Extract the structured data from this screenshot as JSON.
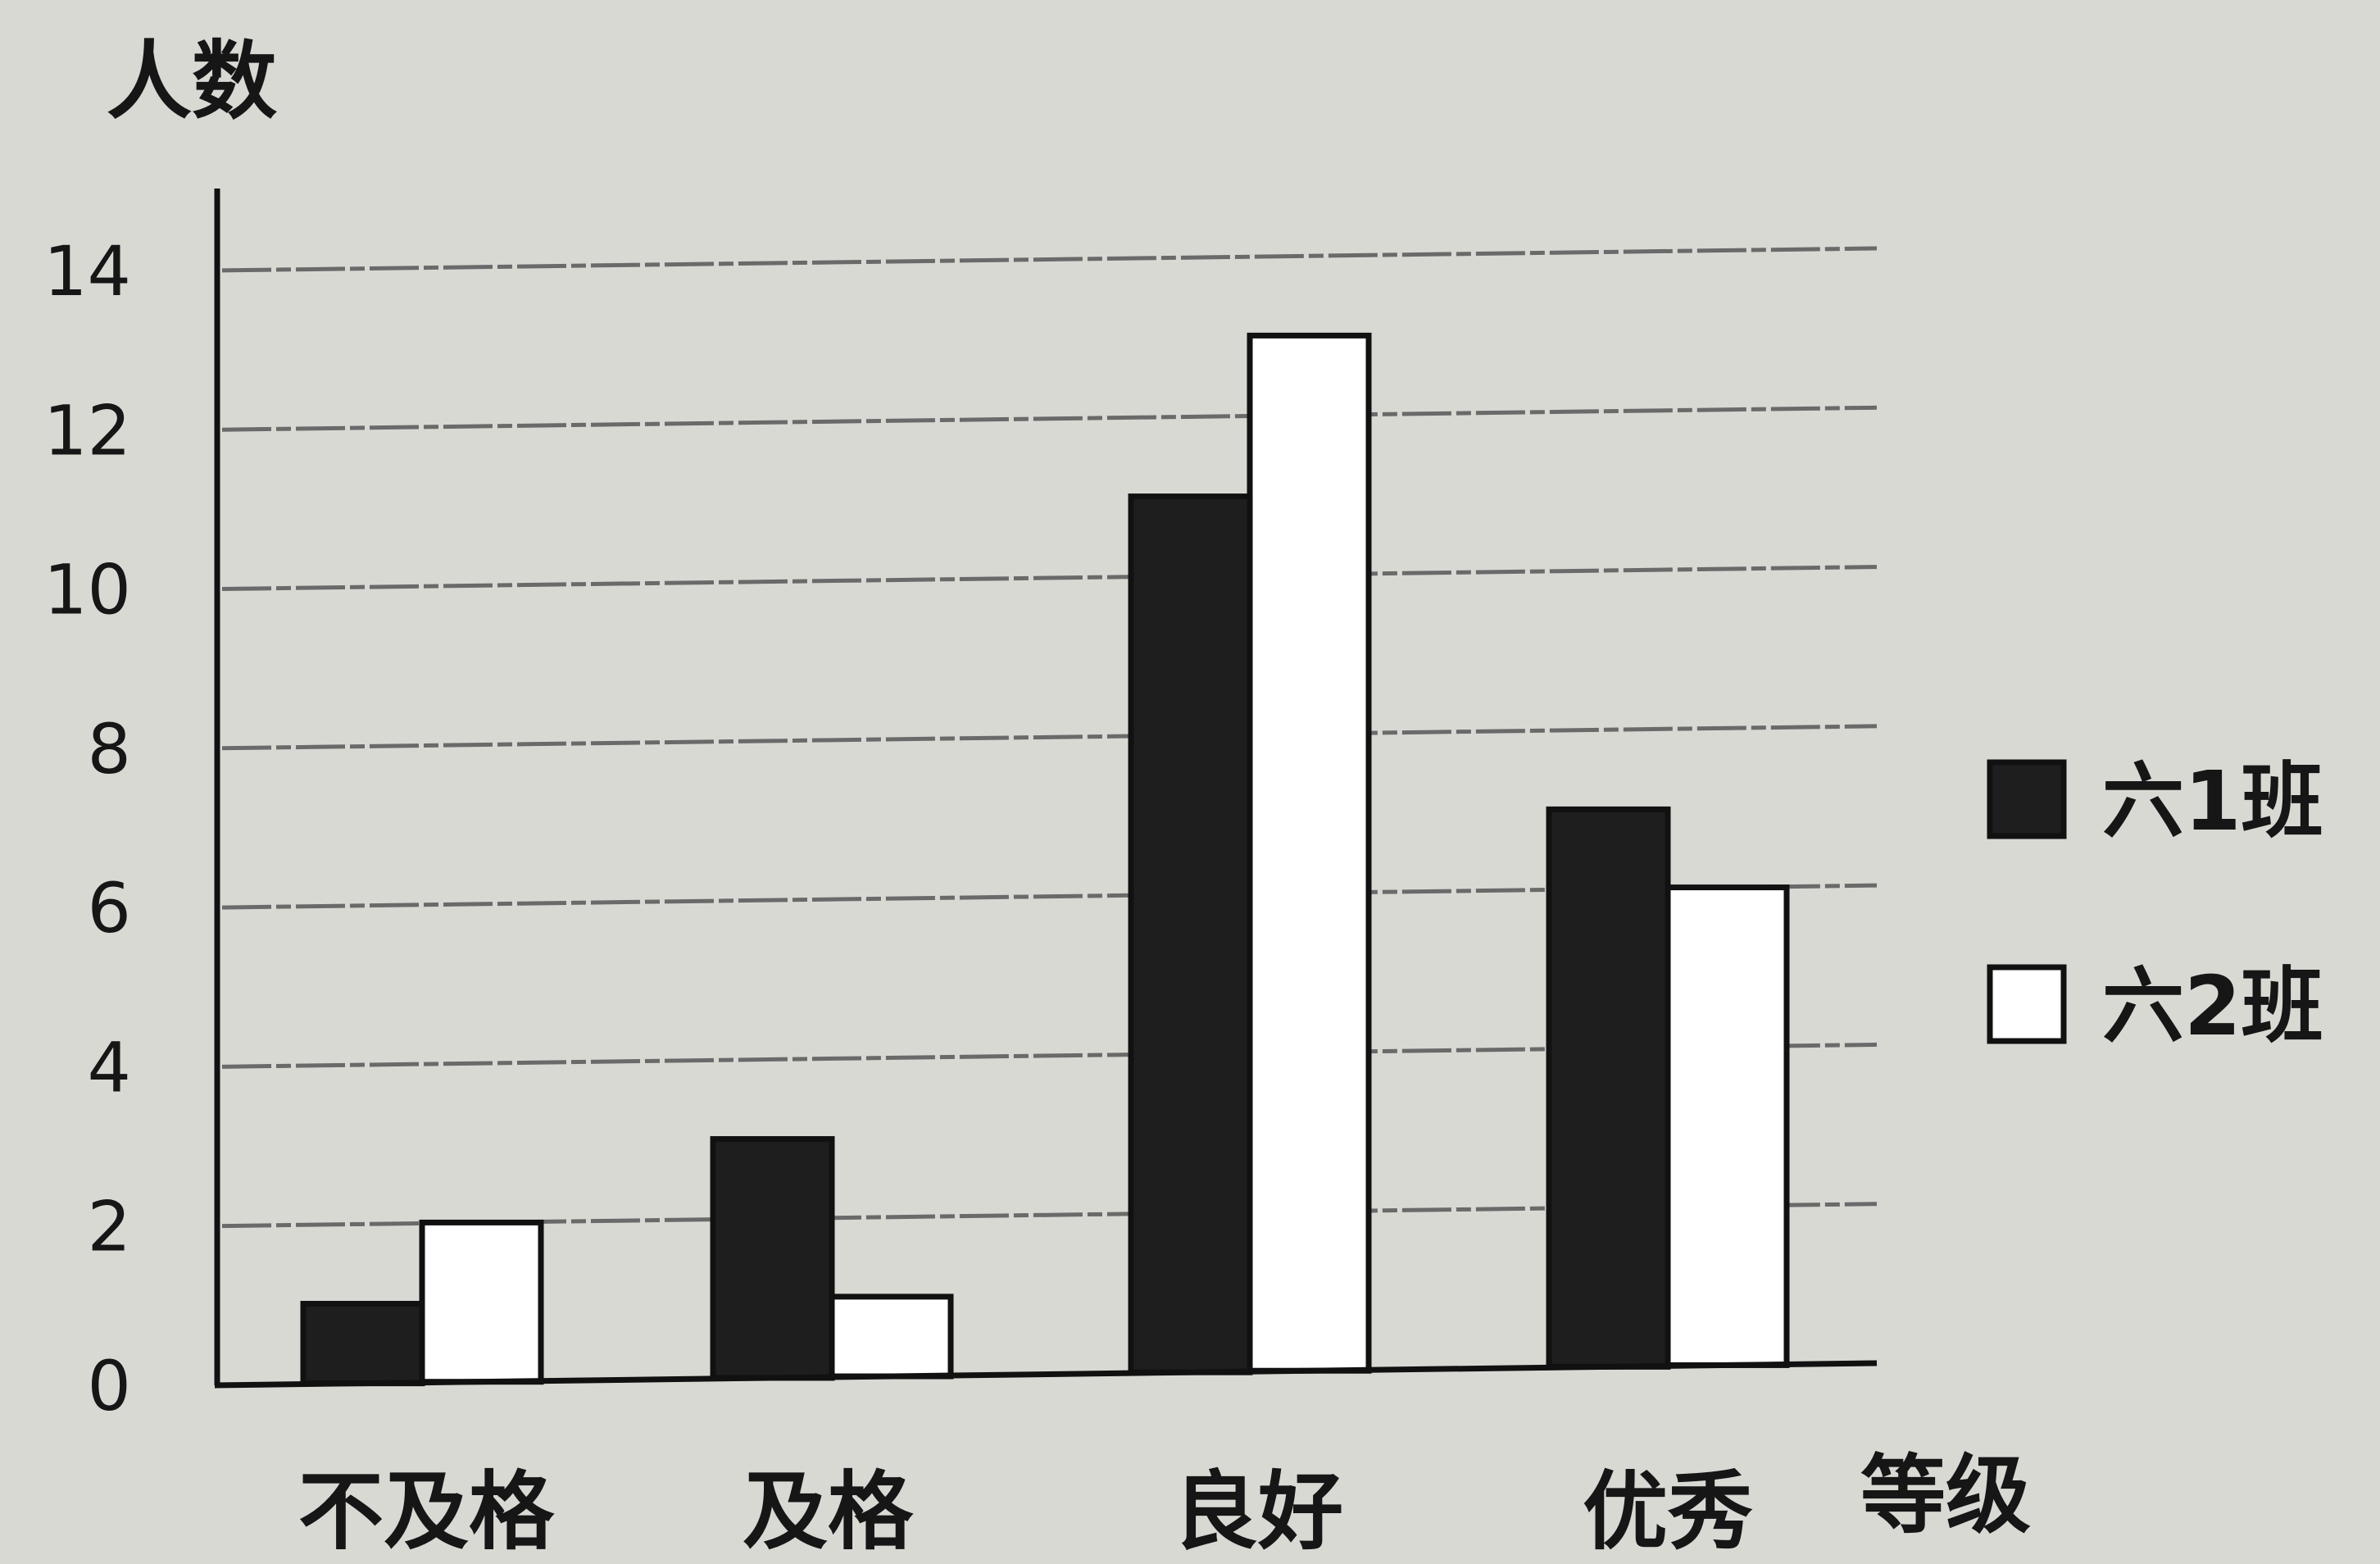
{
  "chart_data": {
    "type": "bar",
    "ylabel": "人数",
    "xlabel": "等级",
    "categories": [
      "不及格",
      "及格",
      "良好",
      "优秀"
    ],
    "series": [
      {
        "name": "六1班",
        "values": [
          1,
          3,
          11,
          7
        ],
        "color": "#1e1e1e"
      },
      {
        "name": "六2班",
        "values": [
          2,
          1,
          13,
          6
        ],
        "color": "#ffffff"
      }
    ],
    "yticks": [
      0,
      2,
      4,
      6,
      8,
      10,
      12,
      14
    ],
    "ylim": [
      0,
      14
    ],
    "grid": true,
    "legend": "right"
  }
}
